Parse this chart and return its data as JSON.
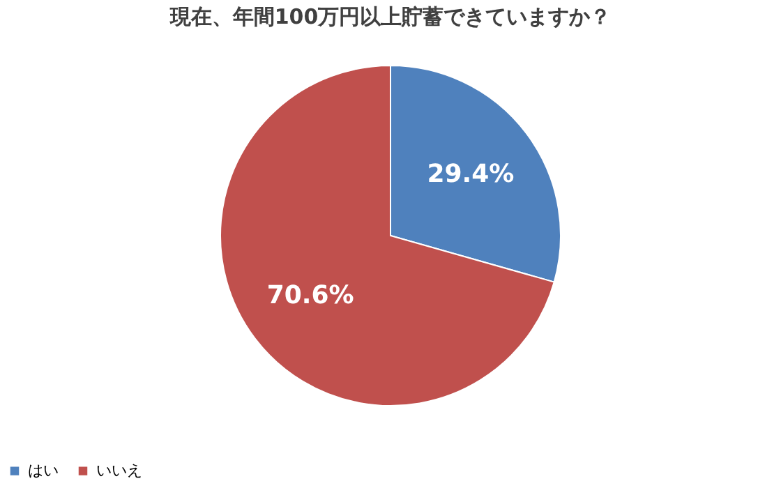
{
  "chart_data": {
    "type": "pie",
    "title": "現在、年間100万円以上貯蓄できていますか？",
    "categories": [
      "はい",
      "いいえ"
    ],
    "values": [
      29.4,
      70.6
    ],
    "colors": [
      "#4f81bd",
      "#c0504d"
    ],
    "value_labels": [
      "29.4%",
      "70.6%"
    ],
    "legend": "bottom"
  }
}
